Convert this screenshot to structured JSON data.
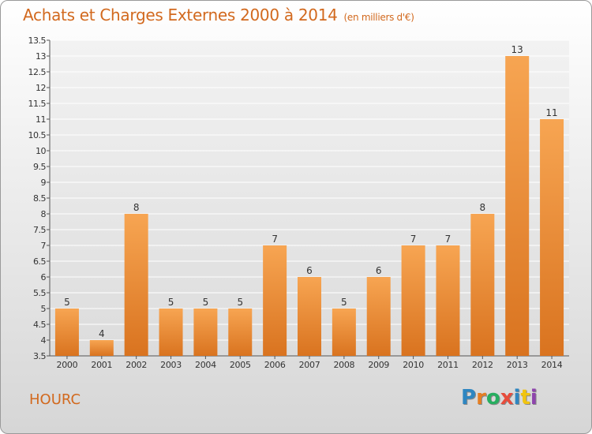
{
  "title": "Achats et Charges Externes 2000 à 2014",
  "unit": "(en milliers d'€)",
  "commune": "HOURC",
  "logo": {
    "text": "Proxiti",
    "letters": [
      {
        "char": "P",
        "color": "#2e86c1"
      },
      {
        "char": "r",
        "color": "#e67e22"
      },
      {
        "char": "o",
        "color": "#27ae60"
      },
      {
        "char": "x",
        "color": "#e74c3c"
      },
      {
        "char": "i",
        "color": "#2e86c1"
      },
      {
        "char": "t",
        "color": "#f1c40f"
      },
      {
        "char": "i",
        "color": "#8e44ad"
      }
    ]
  },
  "chart_data": {
    "type": "bar",
    "categories": [
      "2000",
      "2001",
      "2002",
      "2003",
      "2004",
      "2005",
      "2006",
      "2007",
      "2008",
      "2009",
      "2010",
      "2011",
      "2012",
      "2013",
      "2014"
    ],
    "values": [
      5,
      4,
      8,
      5,
      5,
      5,
      7,
      6,
      5,
      6,
      7,
      7,
      8,
      13,
      11
    ],
    "value_labels": [
      "5",
      "4",
      "8",
      "5",
      "5",
      "5",
      "7",
      "6",
      "5",
      "6",
      "7",
      "7",
      "8",
      "13",
      "11"
    ],
    "ylim": [
      3.5,
      13.5
    ],
    "yticks": [
      "3.5",
      "4",
      "4.5",
      "5",
      "5.5",
      "6",
      "6.5",
      "7",
      "7.5",
      "8",
      "8.5",
      "9",
      "9.5",
      "10",
      "10.5",
      "11",
      "11.5",
      "12",
      "12.5",
      "13",
      "13.5"
    ],
    "bar_color": "#f0923a",
    "grid": true
  }
}
